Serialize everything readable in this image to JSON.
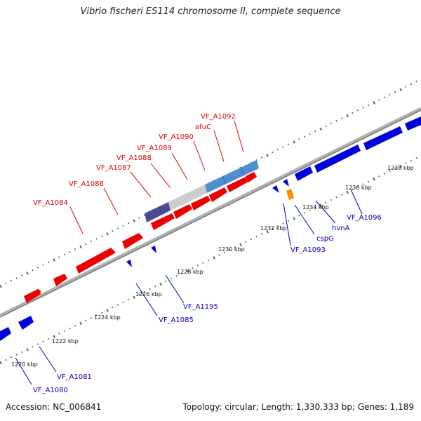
{
  "header": {
    "title": "Vibrio fischeri ES114 chromosome II, complete sequence"
  },
  "footer": {
    "accession": "Accession: NC_006841",
    "summary": "Topology: circular; Length: 1,330,333 bp; Genes: 1,189"
  },
  "colors": {
    "forward": "#ee0000",
    "reverse": "#0000dd",
    "forward_label": "#dd0000",
    "reverse_label": "#0000bb",
    "orange": "#ff8c00",
    "backbone": "#8a8a8a",
    "dots": "#228822",
    "blue_light": "#4f8fd0",
    "grey_light": "#cccccc",
    "purple": "#4a4a90"
  },
  "ticks": [
    {
      "label": "1220 kbp"
    },
    {
      "label": "1222 kbp"
    },
    {
      "label": "1224 kbp"
    },
    {
      "label": "1226 kbp"
    },
    {
      "label": "1228 kbp"
    },
    {
      "label": "1230 kbp"
    },
    {
      "label": "1232 kbp"
    },
    {
      "label": "1234 kbp"
    },
    {
      "label": "1236 kbp"
    },
    {
      "label": "1238 kbp"
    }
  ],
  "gene_labels": {
    "forward": [
      "VF_A1084",
      "VF_A1086",
      "VF_A1087",
      "VF_A1088",
      "VF_A1089",
      "VF_A1090",
      "afuC",
      "VF_A1092"
    ],
    "reverse": [
      "VF_A1080",
      "VF_A1081",
      "VF_A1085",
      "VF_A1195",
      "VF_A1093",
      "cspG",
      "hvnA",
      "VF_A1096"
    ]
  }
}
